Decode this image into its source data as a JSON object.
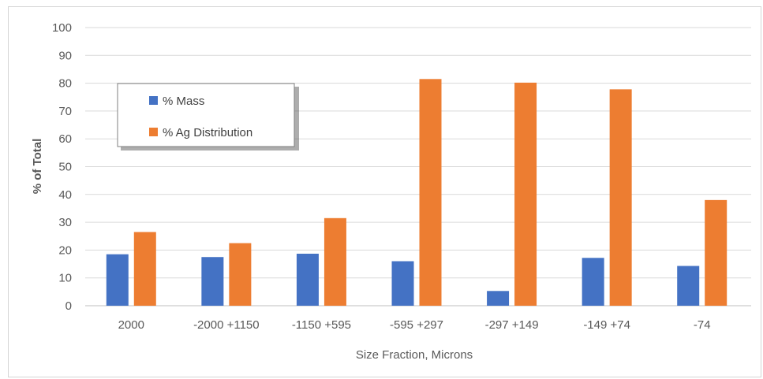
{
  "chart_data": {
    "type": "bar",
    "categories": [
      "2000",
      "-2000 +1150",
      "-1150 +595",
      "-595 +297",
      "-297 +149",
      "-149 +74",
      "-74"
    ],
    "series": [
      {
        "name": "% Mass",
        "color": "#4472C4",
        "values": [
          18.5,
          17.5,
          18.7,
          16.0,
          5.3,
          17.2,
          14.3
        ]
      },
      {
        "name": "% Ag Distribution",
        "color": "#ED7D31",
        "values": [
          26.5,
          22.5,
          31.5,
          81.5,
          80.2,
          77.8,
          38.0
        ]
      }
    ],
    "xlabel": "Size Fraction, Microns",
    "ylabel": "% of Total",
    "ylim": [
      0,
      100
    ],
    "yticks": [
      "0",
      "10",
      "20",
      "30",
      "40",
      "50",
      "60",
      "70",
      "80",
      "90",
      "100"
    ],
    "grid": true,
    "legend_position": "top-left"
  }
}
